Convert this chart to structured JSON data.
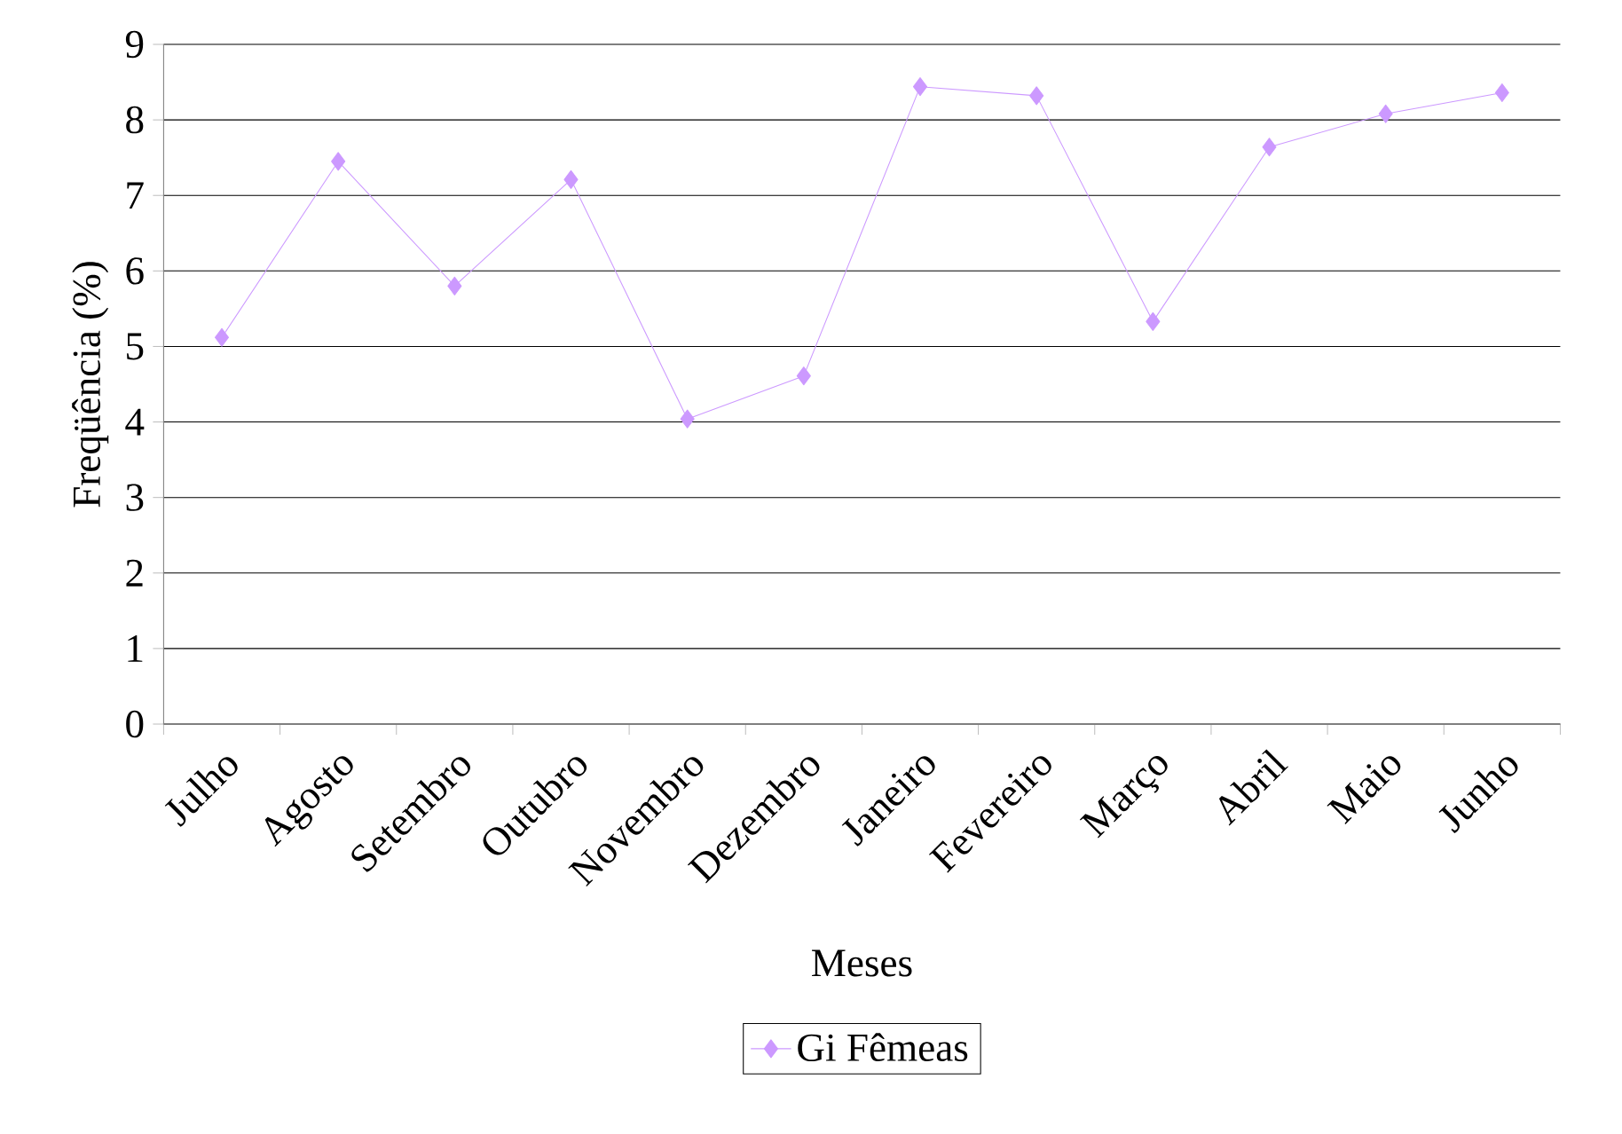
{
  "chart_data": {
    "type": "line",
    "xlabel": "Meses",
    "ylabel": "Freqüência (%)",
    "categories": [
      "Julho",
      "Agosto",
      "Setembro",
      "Outubro",
      "Novembro",
      "Dezembro",
      "Janeiro",
      "Fevereiro",
      "Março",
      "Abril",
      "Maio",
      "Junho"
    ],
    "series": [
      {
        "name": "Gi Fêmeas",
        "color": "#cc99ff",
        "values": [
          5.12,
          7.45,
          5.8,
          7.21,
          4.04,
          4.61,
          8.44,
          8.32,
          5.33,
          7.64,
          8.08,
          8.36
        ]
      }
    ],
    "ylim": [
      0,
      9
    ],
    "yticks": [
      0,
      1,
      2,
      3,
      4,
      5,
      6,
      7,
      8,
      9
    ],
    "grid": "y",
    "legend": "bottom",
    "marker": "diamond",
    "line_style": "solid"
  }
}
